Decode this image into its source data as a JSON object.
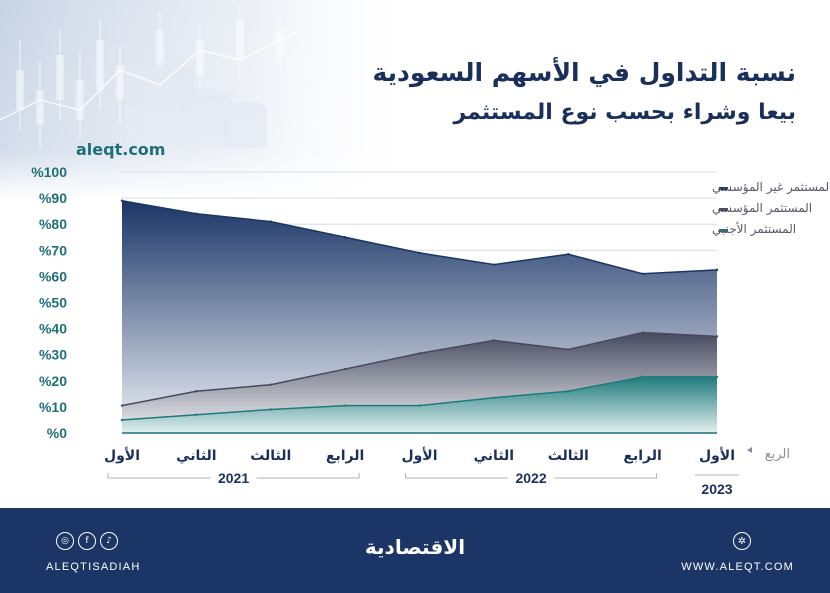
{
  "header": {
    "title": "نسبة التداول في الأسهم السعودية",
    "subtitle": "بيعا وشراء بحسب نوع المستثمر",
    "site": "aleqt.com"
  },
  "footer": {
    "social_handle": "ALEQTISADIAH",
    "logo_text": "الاقتصادية",
    "website": "WWW.ALEQT.COM",
    "social_icons": [
      "instagram-icon",
      "facebook-icon",
      "twitter-icon"
    ]
  },
  "chart_data": {
    "type": "area",
    "quarter_axis_label": "الربع",
    "x": [
      "الأول",
      "الثاني",
      "الثالث",
      "الرابع",
      "الأول",
      "الثاني",
      "الثالث",
      "الرابع",
      "الأول"
    ],
    "year_groups": [
      {
        "label": "2021",
        "start": 0,
        "end": 3
      },
      {
        "label": "2022",
        "start": 4,
        "end": 7
      },
      {
        "label": "2023",
        "start": 8,
        "end": 8
      }
    ],
    "ylim": [
      0,
      100
    ],
    "yticks": [
      "%0",
      "%10",
      "%20",
      "%30",
      "%40",
      "%50",
      "%60",
      "%70",
      "%80",
      "%90",
      "%100"
    ],
    "grid": true,
    "legend_position": "top-right",
    "series": [
      {
        "name": "المستثمر غير المؤسسي",
        "color": "#1b3566",
        "values": [
          89,
          84,
          81,
          75,
          69,
          64.5,
          68.5,
          61,
          62.5
        ]
      },
      {
        "name": "المستثمر المؤسسي",
        "color": "#454a5e",
        "values": [
          10.5,
          16,
          18.5,
          24.5,
          30.5,
          35.5,
          32,
          38.5,
          37
        ]
      },
      {
        "name": "المستثمر الأجنبي",
        "color": "#1f7a7c",
        "values": [
          5,
          7,
          9,
          10.5,
          10.5,
          13.5,
          16,
          21.5,
          21.5
        ]
      }
    ]
  }
}
